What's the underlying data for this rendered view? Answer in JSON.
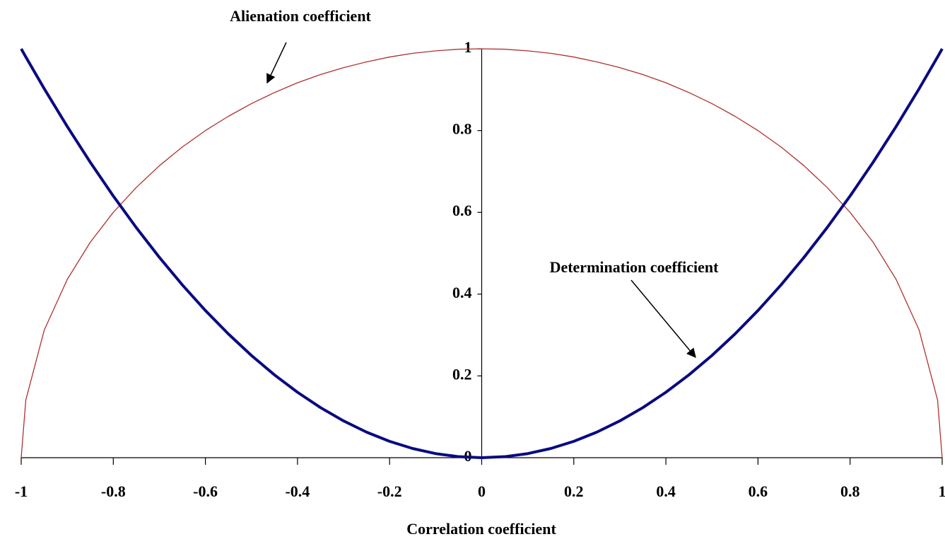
{
  "chart_data": {
    "type": "line",
    "xlabel": "Correlation coefficient",
    "x": [
      -1,
      -0.99,
      -0.95,
      -0.9,
      -0.85,
      -0.8,
      -0.75,
      -0.7,
      -0.65,
      -0.6,
      -0.55,
      -0.5,
      -0.45,
      -0.4,
      -0.35,
      -0.3,
      -0.25,
      -0.2,
      -0.15,
      -0.1,
      -0.05,
      0,
      0.05,
      0.1,
      0.15,
      0.2,
      0.25,
      0.3,
      0.35,
      0.4,
      0.45,
      0.5,
      0.55,
      0.6,
      0.65,
      0.7,
      0.75,
      0.8,
      0.85,
      0.9,
      0.95,
      0.99,
      1
    ],
    "series": [
      {
        "name": "Alienation coefficient",
        "color": "#b03030",
        "values": [
          0,
          0.141,
          0.312,
          0.436,
          0.527,
          0.6,
          0.661,
          0.714,
          0.76,
          0.8,
          0.835,
          0.866,
          0.893,
          0.917,
          0.937,
          0.954,
          0.968,
          0.98,
          0.989,
          0.995,
          0.999,
          1,
          0.999,
          0.995,
          0.989,
          0.98,
          0.968,
          0.954,
          0.937,
          0.917,
          0.893,
          0.866,
          0.835,
          0.8,
          0.76,
          0.714,
          0.661,
          0.6,
          0.527,
          0.436,
          0.312,
          0.141,
          0
        ]
      },
      {
        "name": "Determination coefficient",
        "color": "#0a0a80",
        "values": [
          1,
          0.9801,
          0.9025,
          0.81,
          0.7225,
          0.64,
          0.5625,
          0.49,
          0.4225,
          0.36,
          0.3025,
          0.25,
          0.2025,
          0.16,
          0.1225,
          0.09,
          0.0625,
          0.04,
          0.0225,
          0.01,
          0.0025,
          0,
          0.0025,
          0.01,
          0.0225,
          0.04,
          0.0625,
          0.09,
          0.1225,
          0.16,
          0.2025,
          0.25,
          0.3025,
          0.36,
          0.4225,
          0.49,
          0.5625,
          0.64,
          0.7225,
          0.81,
          0.9025,
          0.9801,
          1
        ]
      }
    ],
    "xlim": [
      -1,
      1
    ],
    "ylim": [
      0,
      1
    ],
    "xticks": [
      -1,
      -0.8,
      -0.6,
      -0.4,
      -0.2,
      0,
      0.2,
      0.4,
      0.6,
      0.8,
      1
    ],
    "yticks": [
      0,
      0.2,
      0.4,
      0.6,
      0.8,
      1
    ],
    "grid": false
  }
}
